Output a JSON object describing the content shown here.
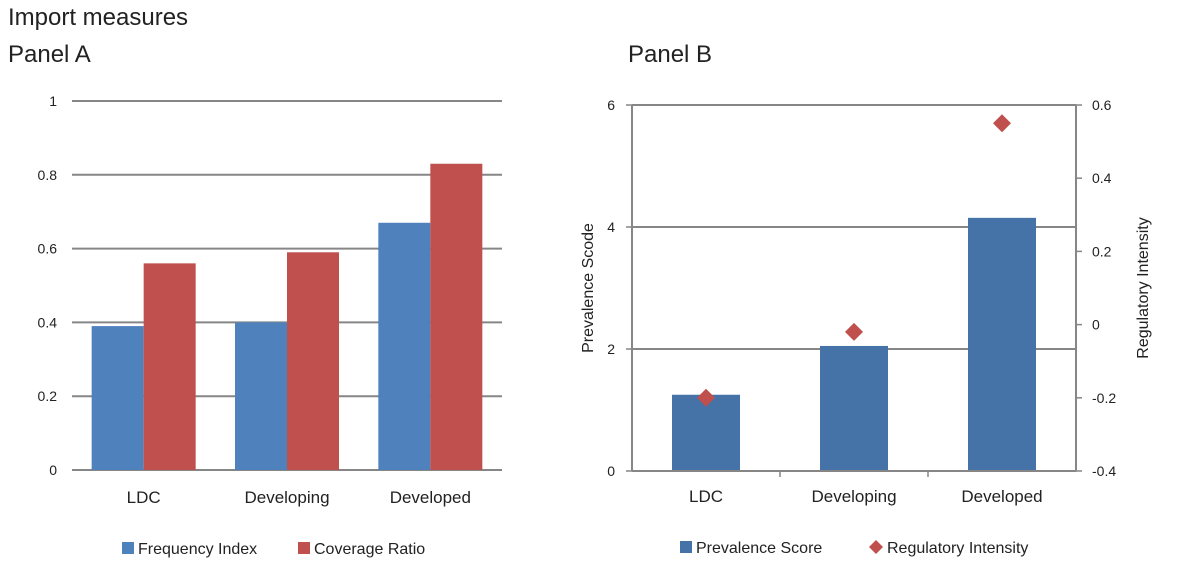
{
  "page_title": "Import measures",
  "colors": {
    "frequency": "#4f81bd",
    "coverage": "#c0504d",
    "prevalence": "#4572a7",
    "regulatory": "#c0504d",
    "grid": "#868686"
  },
  "chart_data": [
    {
      "type": "bar",
      "title": "Panel A",
      "categories": [
        "LDC",
        "Developing",
        "Developed"
      ],
      "series": [
        {
          "name": "Frequency Index",
          "values": [
            0.39,
            0.4,
            0.67
          ]
        },
        {
          "name": "Coverage Ratio",
          "values": [
            0.56,
            0.59,
            0.83
          ]
        }
      ],
      "ylim": [
        0,
        1
      ],
      "yticks": [
        0,
        0.2,
        0.4,
        0.6,
        0.8,
        1
      ],
      "ytick_labels": [
        "0",
        "0.2",
        "0.4",
        "0.6",
        "0.8",
        "1"
      ],
      "xlabel": "",
      "ylabel": "",
      "grid": true,
      "legend": "bottom"
    },
    {
      "type": "bar",
      "title": "Panel B",
      "categories": [
        "LDC",
        "Developing",
        "Developed"
      ],
      "series": [
        {
          "name": "Prevalence Score",
          "axis": "left",
          "values": [
            1.25,
            2.05,
            4.15
          ]
        },
        {
          "name": "Regulatory Intensity",
          "axis": "right",
          "kind": "scatter",
          "values": [
            -0.2,
            -0.02,
            0.55
          ]
        }
      ],
      "ylim": [
        0,
        6
      ],
      "yticks": [
        0,
        2,
        4,
        6
      ],
      "ytick_labels": [
        "0",
        "2",
        "4",
        "6"
      ],
      "y2lim": [
        -0.4,
        0.6
      ],
      "y2ticks": [
        -0.4,
        -0.2,
        0,
        0.2,
        0.4,
        0.6
      ],
      "y2tick_labels": [
        "-0.4",
        "-0.2",
        "0",
        "0.2",
        "0.4",
        "0.6"
      ],
      "xlabel": "",
      "ylabel": "Prevalence Scode",
      "y2label": "Regulatory Intensity",
      "grid": true,
      "legend": "bottom"
    }
  ]
}
